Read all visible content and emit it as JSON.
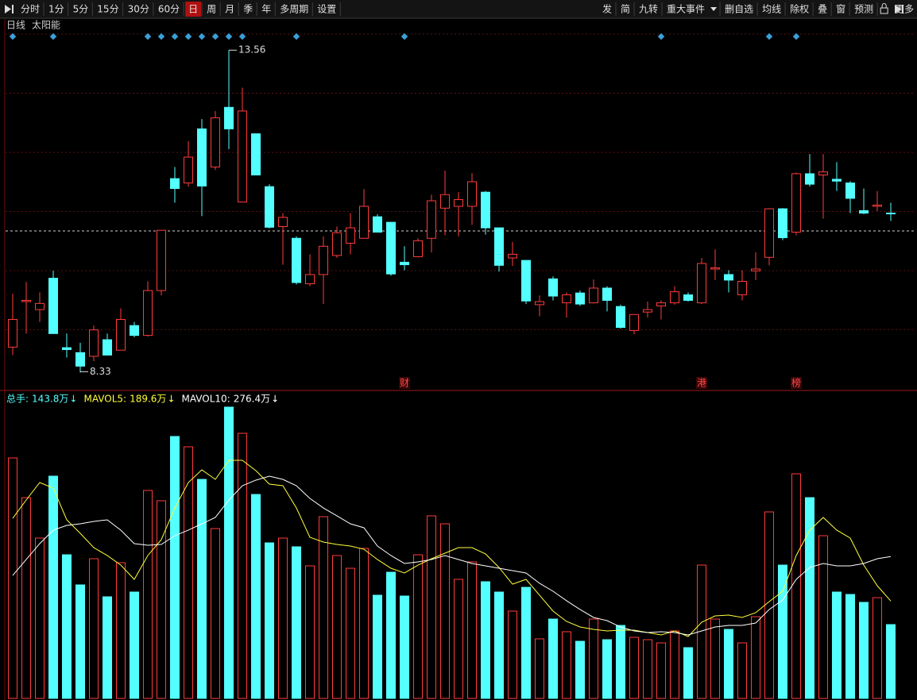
{
  "toolbar": {
    "left_items": [
      {
        "label": "分时"
      },
      {
        "label": "1分"
      },
      {
        "label": "5分"
      },
      {
        "label": "15分"
      },
      {
        "label": "30分"
      },
      {
        "label": "60分"
      },
      {
        "label": "日",
        "active": true
      },
      {
        "label": "周"
      },
      {
        "label": "月"
      },
      {
        "label": "季"
      },
      {
        "label": "年"
      },
      {
        "label": "多周期"
      },
      {
        "label": "设置"
      }
    ],
    "right_items": [
      {
        "label": "发"
      },
      {
        "label": "简"
      },
      {
        "label": "九转"
      },
      {
        "label": "重大事件",
        "dropdown": true
      },
      {
        "label": "删自选"
      },
      {
        "label": "均线"
      },
      {
        "label": "除权"
      },
      {
        "label": "叠"
      },
      {
        "label": "窗"
      },
      {
        "label": "预测"
      },
      {
        "label": "更多",
        "lock": true
      }
    ]
  },
  "chart_data": [
    {
      "type": "candlestick",
      "period_label": "日线",
      "title": "太阳能",
      "open": [
        8.73,
        9.47,
        9.34,
        9.85,
        8.72,
        8.64,
        8.58,
        8.85,
        8.68,
        9.08,
        8.92,
        9.65,
        11.47,
        11.4,
        12.28,
        11.66,
        12.63,
        11.09,
        12.2,
        11.34,
        10.69,
        10.5,
        9.76,
        9.91,
        10.22,
        10.42,
        10.5,
        10.85,
        10.76,
        10.11,
        10.2,
        10.5,
        10.99,
        11.02,
        11.02,
        11.25,
        10.67,
        10.18,
        10.14,
        9.42,
        9.84,
        9.45,
        9.61,
        9.45,
        9.69,
        9.39,
        9.0,
        9.3,
        9.4,
        9.45,
        9.58,
        9.45,
        10.0,
        9.91,
        9.58,
        9.97,
        10.19,
        10.98,
        10.6,
        11.55,
        11.53,
        11.46,
        11.4,
        10.95,
        11.02,
        10.91
      ],
      "high": [
        9.6,
        9.79,
        9.62,
        9.97,
        8.95,
        8.8,
        9.08,
        8.95,
        9.36,
        9.14,
        9.8,
        10.63,
        11.66,
        12.08,
        12.44,
        12.57,
        13.56,
        12.95,
        12.2,
        11.38,
        10.91,
        10.53,
        10.24,
        10.53,
        10.69,
        10.91,
        11.3,
        10.89,
        10.76,
        10.37,
        10.5,
        11.21,
        11.6,
        11.25,
        11.56,
        11.27,
        10.67,
        10.44,
        10.14,
        9.57,
        9.88,
        9.62,
        9.65,
        9.83,
        9.72,
        9.42,
        9.26,
        9.47,
        9.49,
        9.72,
        9.62,
        10.18,
        10.32,
        9.98,
        9.98,
        10.27,
        10.99,
        10.99,
        11.57,
        11.87,
        11.87,
        11.74,
        11.43,
        11.31,
        11.27,
        11.08
      ],
      "low": [
        8.6,
        8.95,
        9.14,
        8.95,
        8.56,
        8.33,
        8.5,
        8.6,
        8.68,
        8.89,
        8.9,
        9.57,
        11.08,
        11.34,
        10.86,
        11.61,
        11.95,
        11.09,
        11.53,
        10.66,
        10.07,
        9.75,
        9.72,
        9.43,
        10.18,
        10.24,
        10.5,
        10.6,
        9.89,
        9.98,
        10.19,
        10.27,
        10.55,
        10.53,
        10.72,
        10.56,
        9.96,
        10.05,
        9.43,
        9.23,
        9.49,
        9.21,
        9.4,
        9.44,
        9.31,
        9.03,
        8.94,
        9.21,
        9.18,
        9.42,
        9.47,
        9.43,
        9.82,
        9.62,
        9.49,
        9.82,
        10.06,
        10.47,
        10.55,
        11.34,
        10.82,
        11.27,
        10.91,
        10.89,
        10.94,
        10.78
      ],
      "close": [
        9.18,
        9.49,
        9.44,
        8.95,
        8.69,
        8.42,
        9.01,
        8.6,
        9.18,
        8.92,
        9.65,
        10.63,
        11.31,
        11.82,
        11.35,
        12.46,
        12.28,
        12.57,
        11.53,
        10.68,
        10.84,
        9.78,
        9.91,
        10.37,
        10.59,
        10.67,
        11.02,
        10.6,
        9.92,
        10.07,
        10.46,
        11.11,
        11.21,
        11.13,
        11.42,
        10.67,
        10.06,
        10.24,
        9.48,
        9.47,
        9.56,
        9.58,
        9.43,
        9.69,
        9.49,
        9.05,
        9.26,
        9.34,
        9.45,
        9.63,
        9.49,
        10.09,
        10.02,
        9.82,
        9.8,
        10.0,
        10.98,
        10.51,
        11.55,
        11.38,
        11.58,
        11.43,
        11.15,
        10.91,
        11.04,
        10.9
      ],
      "signals": [
        true,
        false,
        false,
        true,
        false,
        false,
        false,
        false,
        false,
        false,
        true,
        true,
        true,
        true,
        true,
        true,
        true,
        true,
        false,
        false,
        false,
        true,
        false,
        false,
        false,
        false,
        false,
        false,
        false,
        true,
        false,
        false,
        false,
        false,
        false,
        false,
        false,
        false,
        false,
        false,
        false,
        false,
        false,
        false,
        false,
        false,
        false,
        false,
        true,
        false,
        false,
        false,
        false,
        false,
        false,
        false,
        true,
        false,
        true,
        false,
        false,
        false,
        false,
        false,
        false,
        false
      ],
      "events": [
        null,
        null,
        null,
        null,
        null,
        null,
        null,
        null,
        null,
        null,
        null,
        null,
        null,
        null,
        null,
        null,
        null,
        null,
        null,
        null,
        null,
        null,
        null,
        null,
        null,
        null,
        null,
        null,
        null,
        "财",
        null,
        null,
        null,
        null,
        null,
        null,
        null,
        null,
        null,
        null,
        null,
        null,
        null,
        null,
        null,
        null,
        null,
        null,
        null,
        null,
        null,
        "港",
        null,
        null,
        null,
        null,
        null,
        null,
        "榜",
        null,
        null,
        null,
        null,
        null,
        null,
        null
      ],
      "reference_line": 10.62,
      "ylim": [
        8.05,
        13.86
      ],
      "up_color": "#ff3b3b",
      "down_color": "#54ffff",
      "signal_color": "#3aa0d8",
      "event_color": "#ff4a4a",
      "grid": true
    },
    {
      "type": "volume",
      "series": [
        {
          "name": "总手:",
          "color": "#54ffff",
          "value_label": "143.8万",
          "trend": "↓",
          "values": [
            468.4,
            391.1,
            312.3,
            432.9,
            279.8,
            221.1,
            272.1,
            197.9,
            264.4,
            207.2,
            405.1,
            385.0,
            510.2,
            490.1,
            426.7,
            330.8,
            567.4,
            516.4,
            397.3,
            303.0,
            312.3,
            295.3,
            258.2,
            354.0,
            278.3,
            253.5,
            292.2,
            201.0,
            245.8,
            199.4,
            279.8,
            355.6,
            340.1,
            231.9,
            265.9,
            227.3,
            207.2,
            170.1,
            216.4,
            116.0,
            154.6,
            129.9,
            111.3,
            154.6,
            114.4,
            142.2,
            119.0,
            114.4,
            108.2,
            131.4,
            98.9,
            259.7,
            154.6,
            134.5,
            108.2,
            159.2,
            363.3,
            259.7,
            437.5,
            391.1,
            316.9,
            207.2,
            202.5,
            187.1,
            196.3,
            143.8
          ]
        },
        {
          "name": "MAVOL5:",
          "color": "#ffff3c",
          "value_label": "189.6万",
          "trend": "↓",
          "values": [
            350.9,
            386.5,
            420.5,
            409.7,
            347.9,
            321.6,
            293.7,
            278.3,
            259.7,
            231.9,
            278.3,
            309.2,
            371.0,
            420.5,
            445.2,
            426.7,
            463.8,
            463.8,
            443.7,
            417.4,
            414.3,
            371.0,
            313.8,
            304.6,
            299.9,
            296.8,
            290.6,
            270.6,
            253.5,
            244.3,
            259.7,
            272.1,
            282.9,
            293.7,
            293.7,
            281.4,
            255.1,
            222.6,
            231.9,
            201.0,
            170.1,
            150.0,
            139.1,
            134.5,
            131.4,
            133.0,
            133.0,
            128.3,
            123.7,
            131.4,
            120.6,
            148.4,
            160.8,
            162.3,
            157.7,
            167.0,
            188.6,
            208.7,
            278.3,
            327.8,
            352.5,
            327.8,
            312.3,
            259.7,
            219.5,
            189.6
          ]
        },
        {
          "name": "MAVOL10:",
          "color": "#ffffff",
          "value_label": "276.4万",
          "trend": "↓",
          "values": [
            239.6,
            270.6,
            301.5,
            327.8,
            337.0,
            340.1,
            344.8,
            347.9,
            327.8,
            301.5,
            298.4,
            299.9,
            316.9,
            327.8,
            340.1,
            352.5,
            386.5,
            414.3,
            425.2,
            432.9,
            426.7,
            414.3,
            389.6,
            371.0,
            355.6,
            340.1,
            332.4,
            296.8,
            278.3,
            262.8,
            265.9,
            270.6,
            278.3,
            270.6,
            262.8,
            258.2,
            253.5,
            248.9,
            244.3,
            224.2,
            208.7,
            190.2,
            173.2,
            157.7,
            151.5,
            139.1,
            131.4,
            128.3,
            129.9,
            128.3,
            123.7,
            131.4,
            139.1,
            142.2,
            142.2,
            146.9,
            173.2,
            191.7,
            231.9,
            255.1,
            262.8,
            258.2,
            258.2,
            262.8,
            272.1,
            276.4
          ]
        }
      ],
      "ylim": [
        0,
        592.1
      ]
    }
  ]
}
